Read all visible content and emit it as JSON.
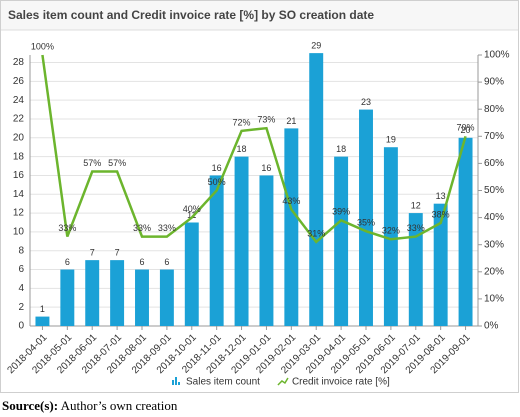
{
  "chart_data": {
    "type": "bar-line",
    "title": "Sales item count and Credit invoice rate [%] by SO creation date",
    "categories": [
      "2018-04-01",
      "2018-05-01",
      "2018-06-01",
      "2018-07-01",
      "2018-08-01",
      "2018-09-01",
      "2018-10-01",
      "2018-11-01",
      "2018-12-01",
      "2019-01-01",
      "2019-02-01",
      "2019-03-01",
      "2019-04-01",
      "2019-05-01",
      "2019-06-01",
      "2019-07-01",
      "2019-08-01",
      "2019-09-01"
    ],
    "series": [
      {
        "name": "Sales item count",
        "type": "bar",
        "color": "#1ba1d6",
        "values": [
          1,
          6,
          7,
          7,
          6,
          6,
          11,
          16,
          18,
          16,
          21,
          29,
          18,
          23,
          19,
          12,
          13,
          20
        ]
      },
      {
        "name": "Credit invoice rate [%]",
        "type": "line",
        "axis": "y2",
        "color": "#6cb52d",
        "values": [
          100,
          33,
          57,
          57,
          33,
          33,
          40,
          50,
          72,
          73,
          43,
          31,
          39,
          35,
          32,
          33,
          38,
          70
        ],
        "value_labels": [
          "100%",
          "33%",
          "57%",
          "57%",
          "33%",
          "33%",
          "40%",
          "50%",
          "72%",
          "73%",
          "43%",
          "31%",
          "39%",
          "35%",
          "32%",
          "33%",
          "38%",
          "70%"
        ]
      }
    ],
    "ylim": [
      0,
      28.8
    ],
    "yticks": [
      0,
      2,
      4,
      6,
      8,
      10,
      12,
      14,
      16,
      18,
      20,
      22,
      24,
      26,
      28
    ],
    "y2lim": [
      0,
      100
    ],
    "y2ticks": [
      {
        "value": 0,
        "label": "0%"
      },
      {
        "value": 10,
        "label": "10%"
      },
      {
        "value": 20,
        "label": "20%"
      },
      {
        "value": 30,
        "label": "30%"
      },
      {
        "value": 40,
        "label": "40%"
      },
      {
        "value": 50,
        "label": "50%"
      },
      {
        "value": 60,
        "label": "60%"
      },
      {
        "value": 70,
        "label": "70%"
      },
      {
        "value": 80,
        "label": "80%"
      },
      {
        "value": 90,
        "label": "90%"
      },
      {
        "value": 100,
        "label": "100%"
      }
    ],
    "grid": true,
    "legend": "bottom"
  },
  "caption": {
    "label": "Source(s):",
    "text": "Author’s own creation"
  }
}
